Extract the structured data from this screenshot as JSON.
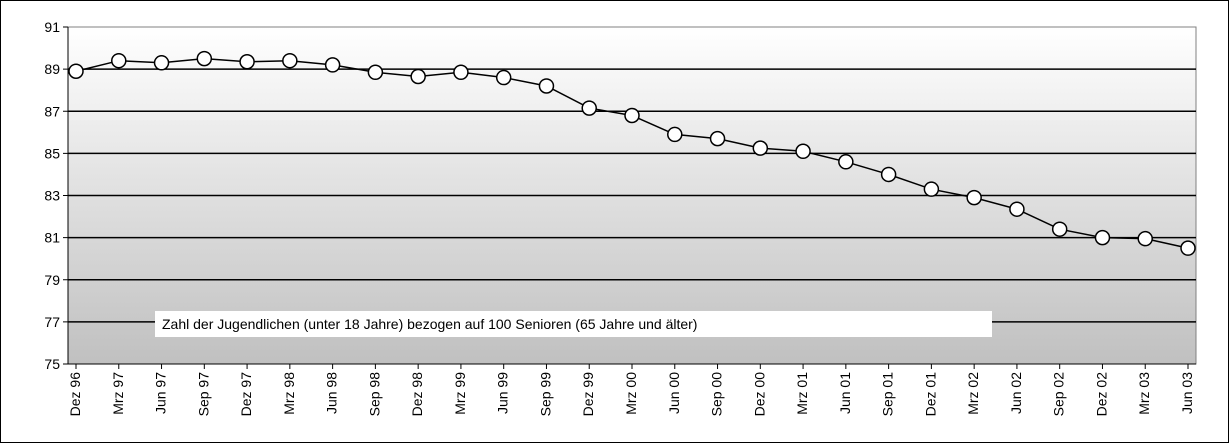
{
  "chart_data": {
    "type": "line",
    "annotation": "Zahl der Jugendlichen (unter 18 Jahre) bezogen auf 100 Senioren (65 Jahre und älter)",
    "categories": [
      "Dez 96",
      "Mrz 97",
      "Jun 97",
      "Sep 97",
      "Dez 97",
      "Mrz 98",
      "Jun 98",
      "Sep 98",
      "Dez 98",
      "Mrz 99",
      "Jun 99",
      "Sep 99",
      "Dez 99",
      "Mrz 00",
      "Jun 00",
      "Sep 00",
      "Dez 00",
      "Mrz 01",
      "Jun 01",
      "Sep 01",
      "Dez 01",
      "Mrz 02",
      "Jun 02",
      "Sep 02",
      "Dez 02",
      "Mrz 03",
      "Jun 03"
    ],
    "values": [
      88.9,
      89.4,
      89.3,
      89.5,
      89.35,
      89.4,
      89.2,
      88.85,
      88.65,
      88.85,
      88.6,
      88.2,
      87.15,
      86.8,
      85.9,
      85.7,
      85.25,
      85.1,
      84.6,
      84.0,
      83.3,
      82.9,
      82.35,
      81.4,
      81.0,
      80.95,
      80.5
    ],
    "color": "#000000",
    "ylim": [
      75,
      91
    ],
    "yticks": [
      75,
      77,
      79,
      81,
      83,
      85,
      87,
      89,
      91
    ],
    "grid": true
  }
}
